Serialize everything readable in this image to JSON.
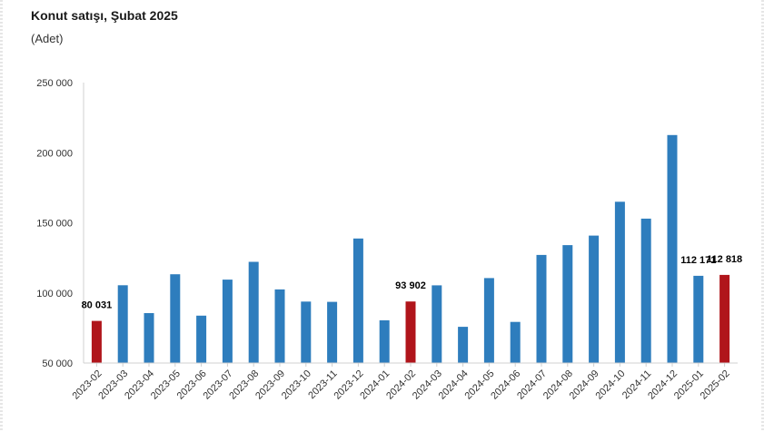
{
  "chart_data": {
    "type": "bar",
    "title": "Konut satışı, Şubat 2025",
    "subtitle": "(Adet)",
    "xlabel": "",
    "ylabel": "",
    "ylim": [
      50000,
      250000
    ],
    "yticks": [
      50000,
      100000,
      150000,
      200000,
      250000
    ],
    "ytick_labels": [
      "50 000",
      "100 000",
      "150 000",
      "200 000",
      "250 000"
    ],
    "grid": false,
    "legend": "none",
    "categories": [
      "2023-02",
      "2023-03",
      "2023-04",
      "2023-05",
      "2023-06",
      "2023-07",
      "2023-08",
      "2023-09",
      "2023-10",
      "2023-11",
      "2023-12",
      "2024-01",
      "2024-02",
      "2024-03",
      "2024-04",
      "2024-05",
      "2024-06",
      "2024-07",
      "2024-08",
      "2024-09",
      "2024-10",
      "2024-11",
      "2024-12",
      "2025-01",
      "2025-02"
    ],
    "values": [
      80031,
      105500,
      85600,
      113300,
      83800,
      109500,
      122200,
      102500,
      93800,
      93600,
      138800,
      80500,
      93902,
      105400,
      75800,
      110600,
      79300,
      127100,
      134100,
      140900,
      165000,
      153000,
      212600,
      112171,
      112818
    ],
    "highlight": [
      true,
      false,
      false,
      false,
      false,
      false,
      false,
      false,
      false,
      false,
      false,
      false,
      true,
      false,
      false,
      false,
      false,
      false,
      false,
      false,
      false,
      false,
      false,
      false,
      true
    ],
    "data_labels": [
      {
        "index": 0,
        "text": "80 031"
      },
      {
        "index": 12,
        "text": "93 902"
      },
      {
        "index": 23,
        "text": "112 171"
      },
      {
        "index": 24,
        "text": "112 818"
      }
    ],
    "colors": {
      "default": "#2e7dbd",
      "highlight": "#b0151b",
      "axis": "#d0d0d0"
    }
  }
}
